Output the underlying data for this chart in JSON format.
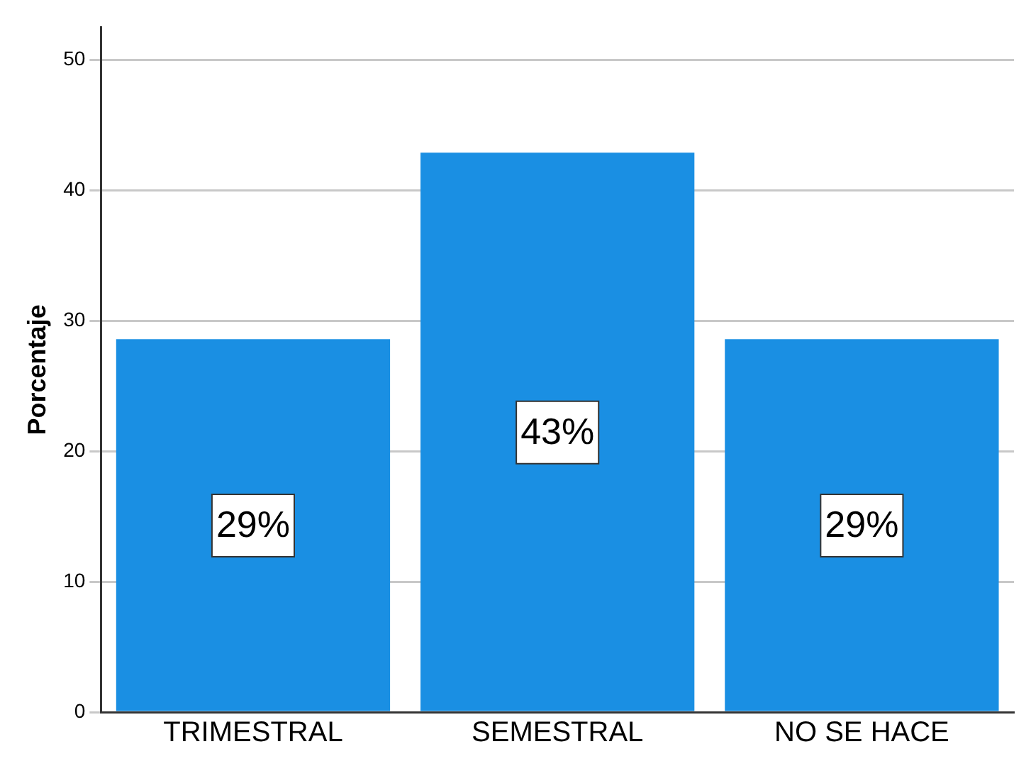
{
  "chart_data": {
    "type": "bar",
    "ylabel": "Porcentaje",
    "categories": [
      "TRIMESTRAL",
      "SEMESTRAL",
      "NO SE HACE"
    ],
    "values": [
      28.6,
      42.9,
      28.6
    ],
    "value_labels": [
      "29%",
      "43%",
      "29%"
    ],
    "color": "#1a8fe3",
    "ylim": [
      0,
      52.5
    ],
    "yticks": [
      0,
      10,
      20,
      30,
      40,
      50
    ],
    "grid": "y",
    "legend": false
  }
}
